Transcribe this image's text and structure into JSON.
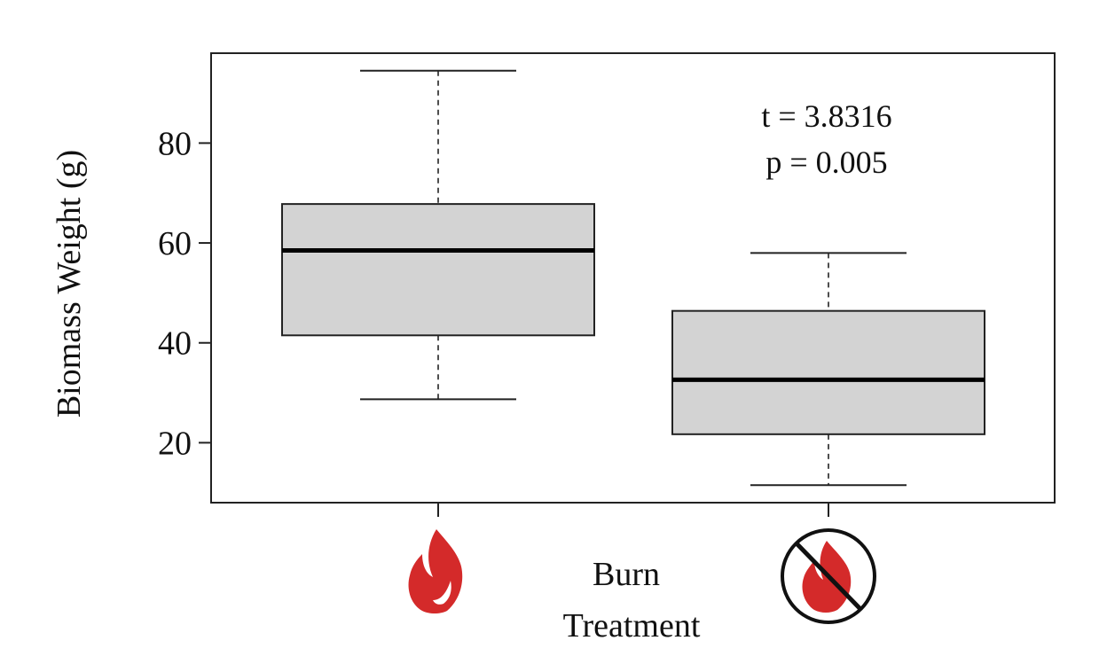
{
  "chart_data": {
    "type": "box",
    "ylabel": "Biomass Weight (g)",
    "xlabel_line1": "Burn",
    "xlabel_line2": "Treatment",
    "ylim": [
      8,
      98
    ],
    "yticks": [
      20,
      40,
      60,
      80
    ],
    "grid": false,
    "categories": [
      "burned",
      "unburned"
    ],
    "category_icons": [
      "flame-icon",
      "no-burn-icon"
    ],
    "boxes": [
      {
        "category": "burned",
        "min": 28.7,
        "q1": 41.5,
        "median": 58.5,
        "q3": 67.8,
        "max": 94.5
      },
      {
        "category": "unburned",
        "min": 11.5,
        "q1": 21.7,
        "median": 32.6,
        "q3": 46.4,
        "max": 58.0
      }
    ],
    "annotation": {
      "line1": "t = 3.8316",
      "line2": "p = 0.005"
    },
    "colors": {
      "box_fill": "#d3d3d3",
      "box_stroke": "#222222",
      "flame": "#d42a2a",
      "axis": "#222222"
    }
  }
}
